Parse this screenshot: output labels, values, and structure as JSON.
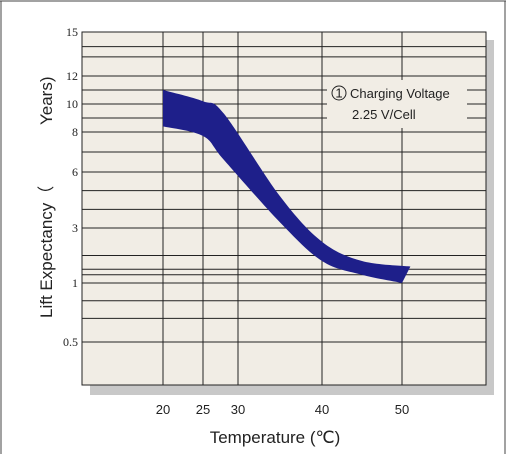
{
  "chart_data": {
    "type": "area",
    "xlabel": "Temperature (℃)",
    "ylabel_part1": "Lift  Expectancy（",
    "ylabel_part2": "Years)",
    "x_ticks": [
      20,
      25,
      30,
      40,
      50
    ],
    "y_ticks": [
      15,
      12,
      10,
      8,
      6,
      3,
      1,
      0.5
    ],
    "xlim": [
      10,
      60
    ],
    "ylim": [
      0.3,
      15
    ],
    "annotation": {
      "marker": "1",
      "line1": "Charging Voltage",
      "line2": "2.25 V/Cell"
    },
    "series": [
      {
        "label": "①",
        "upper": [
          [
            20,
            11
          ],
          [
            25,
            10.2
          ],
          [
            28,
            9.3
          ],
          [
            35,
            4.7
          ],
          [
            40,
            2.5
          ],
          [
            45,
            1.8
          ],
          [
            51,
            1.6
          ]
        ],
        "lower": [
          [
            20,
            8.4
          ],
          [
            25,
            7.8
          ],
          [
            28,
            6.6
          ],
          [
            35,
            3.3
          ],
          [
            40,
            1.8
          ],
          [
            45,
            1.3
          ],
          [
            50,
            1.0
          ]
        ]
      }
    ],
    "colors": {
      "band": "#1e1f8a",
      "plot_bg": "#f1ede5",
      "shadow": "#c8c8c8",
      "grid": "#222222"
    }
  }
}
